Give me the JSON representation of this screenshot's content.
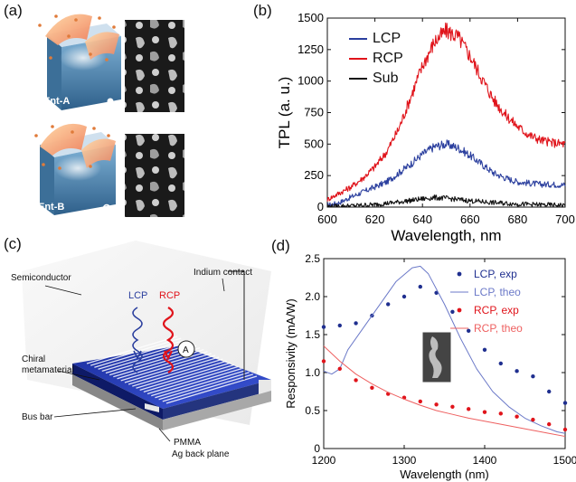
{
  "panels": {
    "a": {
      "label": "(a)",
      "model_labels": [
        "Ent-A",
        "Ent-B"
      ]
    },
    "b": {
      "label": "(b)",
      "chart_data": {
        "type": "line",
        "title": "",
        "xlabel": "Wavelength, nm",
        "ylabel": "TPL (a. u.)",
        "xlim": [
          600,
          700
        ],
        "ylim": [
          0,
          1500
        ],
        "xticks": [
          "600",
          "620",
          "640",
          "660",
          "680",
          "700"
        ],
        "yticks": [
          "0",
          "250",
          "500",
          "750",
          "1000",
          "1250",
          "1500"
        ],
        "legend": [
          "LCP",
          "RCP",
          "Sub"
        ],
        "legend_position": "top-left",
        "series": [
          {
            "name": "LCP",
            "color": "#2b3f9e",
            "x": [
              600,
              605,
              610,
              615,
              620,
              625,
              630,
              635,
              640,
              645,
              650,
              655,
              660,
              665,
              670,
              675,
              680,
              685,
              690,
              695,
              700
            ],
            "y": [
              15,
              35,
              80,
              120,
              160,
              200,
              270,
              340,
              420,
              480,
              500,
              470,
              410,
              340,
              270,
              230,
              200,
              190,
              180,
              180,
              175
            ]
          },
          {
            "name": "RCP",
            "color": "#e0141b",
            "x": [
              600,
              605,
              610,
              615,
              620,
              625,
              630,
              635,
              640,
              645,
              650,
              655,
              660,
              665,
              670,
              675,
              680,
              685,
              690,
              695,
              700
            ],
            "y": [
              60,
              110,
              160,
              230,
              320,
              440,
              620,
              870,
              1120,
              1310,
              1400,
              1350,
              1200,
              1020,
              850,
              730,
              640,
              570,
              530,
              510,
              500
            ]
          },
          {
            "name": "Sub",
            "color": "#111111",
            "x": [
              600,
              610,
              620,
              630,
              640,
              645,
              650,
              660,
              670,
              680,
              690,
              700
            ],
            "y": [
              5,
              10,
              20,
              40,
              65,
              75,
              70,
              50,
              35,
              25,
              18,
              15
            ]
          }
        ]
      }
    },
    "c": {
      "label": "(c)",
      "annotations": {
        "semiconductor": "Semiconductor",
        "indium_contact": "Indium contact",
        "lcp": "LCP",
        "rcp": "RCP",
        "ammeter": "A",
        "chiral_1": "Chiral",
        "chiral_2": "metamaterial",
        "bus_bar": "Bus bar",
        "pmma": "PMMA",
        "ag_back_plane": "Ag back plane"
      }
    },
    "d": {
      "label": "(d)",
      "chart_data": {
        "type": "scatter",
        "title": "",
        "xlabel": "Wavelength (nm)",
        "ylabel": "Responsivity (mA/W)",
        "xlim": [
          1200,
          1500
        ],
        "ylim": [
          0,
          2.5
        ],
        "xticks": [
          "1200",
          "1300",
          "1400",
          "1500"
        ],
        "yticks": [
          "0",
          "0.5",
          "1.0",
          "1.5",
          "2.0",
          "2.5"
        ],
        "legend": [
          "LCP, exp",
          "LCP, theo",
          "RCP, exp",
          "RCP, theo"
        ],
        "legend_position": "top-right",
        "series": [
          {
            "name": "LCP, exp",
            "kind": "points",
            "color": "#1f2f8f",
            "x": [
              1200,
              1220,
              1240,
              1260,
              1280,
              1300,
              1320,
              1340,
              1360,
              1380,
              1400,
              1420,
              1440,
              1460,
              1480,
              1500
            ],
            "y": [
              1.6,
              1.62,
              1.65,
              1.75,
              1.9,
              2.0,
              2.13,
              2.05,
              1.8,
              1.55,
              1.3,
              1.12,
              1.02,
              0.95,
              0.75,
              0.6
            ]
          },
          {
            "name": "LCP, theo",
            "kind": "line",
            "color": "#6b79c8",
            "x": [
              1200,
              1210,
              1220,
              1230,
              1250,
              1270,
              1290,
              1310,
              1320,
              1330,
              1350,
              1370,
              1390,
              1410,
              1430,
              1450,
              1470,
              1490,
              1500
            ],
            "y": [
              1.02,
              0.98,
              1.05,
              1.3,
              1.6,
              1.9,
              2.2,
              2.38,
              2.4,
              2.3,
              1.9,
              1.45,
              1.05,
              0.75,
              0.55,
              0.4,
              0.3,
              0.22,
              0.2
            ]
          },
          {
            "name": "RCP, exp",
            "kind": "points",
            "color": "#e0141b",
            "x": [
              1200,
              1220,
              1240,
              1260,
              1280,
              1300,
              1320,
              1340,
              1360,
              1380,
              1400,
              1420,
              1440,
              1460,
              1480,
              1500
            ],
            "y": [
              1.15,
              1.05,
              0.9,
              0.8,
              0.72,
              0.67,
              0.62,
              0.58,
              0.55,
              0.52,
              0.48,
              0.46,
              0.42,
              0.38,
              0.32,
              0.25
            ]
          },
          {
            "name": "RCP, theo",
            "kind": "line",
            "color": "#ee6060",
            "x": [
              1200,
              1220,
              1240,
              1260,
              1280,
              1300,
              1320,
              1340,
              1360,
              1380,
              1400,
              1420,
              1440,
              1460,
              1480,
              1500
            ],
            "y": [
              1.35,
              1.15,
              0.98,
              0.85,
              0.74,
              0.65,
              0.57,
              0.5,
              0.45,
              0.4,
              0.36,
              0.32,
              0.28,
              0.24,
              0.2,
              0.16
            ]
          }
        ]
      }
    }
  }
}
